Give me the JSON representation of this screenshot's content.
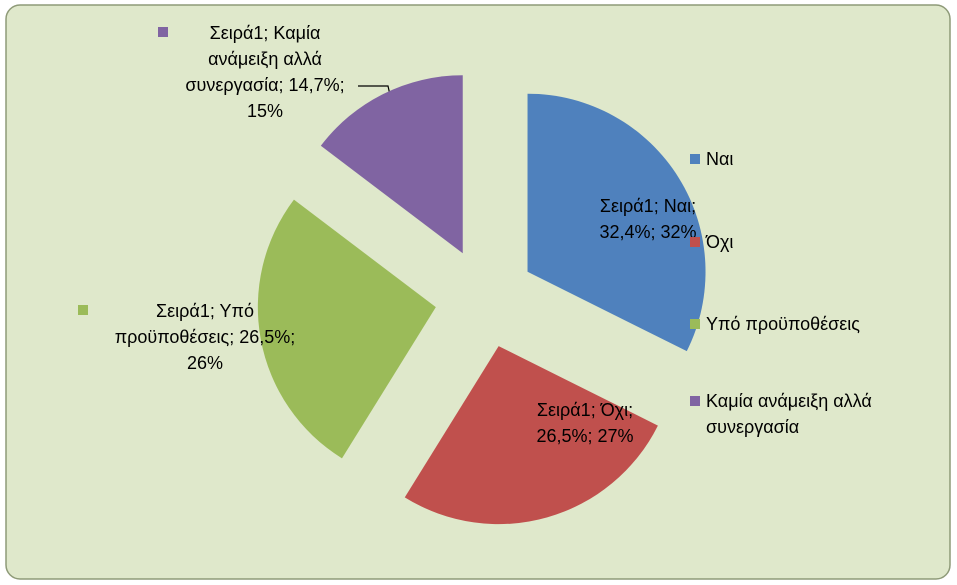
{
  "chart_data": {
    "type": "pie",
    "series_name": "Σειρά1",
    "categories": [
      "Ναι",
      "Όχι",
      "Υπό προϋποθέσεις",
      "Καμία ανάμειξη αλλά συνεργασία"
    ],
    "values": [
      32.4,
      26.5,
      26.5,
      14.7
    ],
    "value_labels": [
      "Σειρά1; Ναι; 32,4%; 32%",
      "Σειρά1; Όχι; 26,5%; 27%",
      "Σειρά1; Υπό προϋποθέσεις; 26,5%; 26%",
      "Σειρά1; Καμία ανάμειξη αλλά συνεργασία; 14,7%; 15%"
    ],
    "colors": [
      "#4f81bd",
      "#c0504d",
      "#9bbb59",
      "#8064a2"
    ],
    "explode": true,
    "legend": "right"
  }
}
